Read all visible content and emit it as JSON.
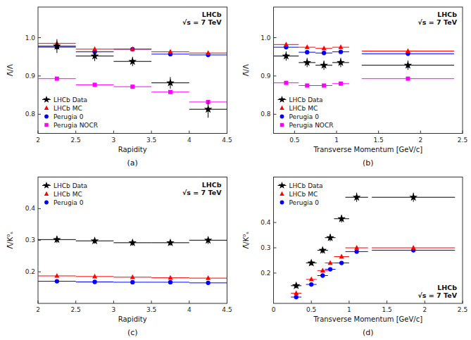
{
  "chart_data": [
    {
      "type": "scatter",
      "title": "(a)",
      "xlabel": "Rapidity",
      "ylabel": "Λ̄/Λ",
      "xlim": [
        2.0,
        4.5
      ],
      "xticks": [
        2,
        2.5,
        3,
        3.5,
        4,
        4.5
      ],
      "ylim": [
        0.75,
        1.08
      ],
      "yticks": [
        0.8,
        0.9,
        {
          "value": 1.0,
          "label": "1.0"
        }
      ],
      "grid": false,
      "legend": "lower left",
      "annotation": "LHCb\n√s = 7 TeV",
      "series": [
        {
          "name": "LHCb Data",
          "color": "black",
          "marker": "star",
          "x": [
            2.25,
            2.75,
            3.25,
            3.75,
            4.25
          ],
          "values": [
            0.978,
            0.952,
            0.938,
            0.882,
            0.813
          ],
          "xerr": [
            0.25,
            0.25,
            0.25,
            0.25,
            0.25
          ],
          "yerr": [
            0.018,
            0.013,
            0.012,
            0.015,
            0.022
          ]
        },
        {
          "name": "LHCb MC",
          "color": "red",
          "marker": "triangle",
          "x": [
            2.25,
            2.75,
            3.25,
            3.75,
            4.25
          ],
          "values": [
            0.985,
            0.97,
            0.97,
            0.963,
            0.96
          ],
          "xerr": [
            0.25,
            0.25,
            0.25,
            0.25,
            0.25
          ]
        },
        {
          "name": "Perugia 0",
          "color": "blue",
          "marker": "circle",
          "x": [
            2.25,
            2.75,
            3.25,
            3.75,
            4.25
          ],
          "values": [
            0.975,
            0.963,
            0.97,
            0.957,
            0.955
          ],
          "xerr": [
            0.25,
            0.25,
            0.25,
            0.25,
            0.25
          ]
        },
        {
          "name": "Perugia NOCR",
          "color": "magenta",
          "marker": "square",
          "x": [
            2.25,
            2.75,
            3.25,
            3.75,
            4.25
          ],
          "values": [
            0.893,
            0.877,
            0.872,
            0.858,
            0.832
          ],
          "xerr": [
            0.25,
            0.25,
            0.25,
            0.25,
            0.25
          ]
        }
      ]
    },
    {
      "type": "scatter",
      "title": "(b)",
      "xlabel": "Transverse Momentum [GeV/c]",
      "ylabel": "Λ̄/Λ",
      "xlim": [
        0.25,
        2.5
      ],
      "xticks": [
        0.5,
        1,
        1.5,
        2,
        2.5
      ],
      "ylim": [
        0.75,
        1.08
      ],
      "yticks": [
        0.8,
        0.9,
        {
          "value": 1.0,
          "label": "1.0"
        }
      ],
      "grid": false,
      "legend": "lower left",
      "annotation": "LHCb\n√s = 7 TeV",
      "series": [
        {
          "name": "LHCb Data",
          "color": "black",
          "marker": "star",
          "x": [
            0.4,
            0.65,
            0.85,
            1.05,
            1.85
          ],
          "values": [
            0.952,
            0.935,
            0.928,
            0.935,
            0.928
          ],
          "xerr": [
            0.15,
            0.1,
            0.1,
            0.1,
            0.55
          ],
          "yerr": [
            0.012,
            0.012,
            0.012,
            0.012,
            0.012
          ]
        },
        {
          "name": "LHCb MC",
          "color": "red",
          "marker": "triangle",
          "x": [
            0.4,
            0.65,
            0.85,
            1.05,
            1.85
          ],
          "values": [
            0.982,
            0.975,
            0.972,
            0.975,
            0.965
          ],
          "xerr": [
            0.15,
            0.1,
            0.1,
            0.1,
            0.55
          ]
        },
        {
          "name": "Perugia 0",
          "color": "blue",
          "marker": "circle",
          "x": [
            0.4,
            0.65,
            0.85,
            1.05,
            1.85
          ],
          "values": [
            0.975,
            0.962,
            0.96,
            0.963,
            0.958
          ],
          "xerr": [
            0.15,
            0.1,
            0.1,
            0.1,
            0.55
          ]
        },
        {
          "name": "Perugia NOCR",
          "color": "magenta",
          "marker": "square",
          "x": [
            0.4,
            0.65,
            0.85,
            1.05,
            1.85
          ],
          "values": [
            0.882,
            0.875,
            0.875,
            0.88,
            0.893
          ],
          "xerr": [
            0.15,
            0.1,
            0.1,
            0.1,
            0.55
          ]
        }
      ]
    },
    {
      "type": "scatter",
      "title": "(c)",
      "xlabel": "Rapidity",
      "ylabel": "Λ̄/K⁰ₛ",
      "xlim": [
        2.0,
        4.5
      ],
      "xticks": [
        2,
        2.5,
        3,
        3.5,
        4,
        4.5
      ],
      "ylim": [
        0.1,
        0.5
      ],
      "yticks": [
        0.2,
        0.3,
        0.4
      ],
      "grid": false,
      "legend": "upper left",
      "annotation": "LHCb\n√s = 7 TeV",
      "series": [
        {
          "name": "LHCb Data",
          "color": "black",
          "marker": "star",
          "x": [
            2.25,
            2.75,
            3.25,
            3.75,
            4.25
          ],
          "values": [
            0.302,
            0.298,
            0.292,
            0.292,
            0.3
          ],
          "xerr": [
            0.25,
            0.25,
            0.25,
            0.25,
            0.25
          ],
          "yerr": [
            0.011,
            0.009,
            0.009,
            0.009,
            0.012
          ]
        },
        {
          "name": "LHCb MC",
          "color": "red",
          "marker": "triangle",
          "x": [
            2.25,
            2.75,
            3.25,
            3.75,
            4.25
          ],
          "values": [
            0.187,
            0.185,
            0.183,
            0.181,
            0.18
          ],
          "xerr": [
            0.25,
            0.25,
            0.25,
            0.25,
            0.25
          ]
        },
        {
          "name": "Perugia 0",
          "color": "blue",
          "marker": "circle",
          "x": [
            2.25,
            2.75,
            3.25,
            3.75,
            4.25
          ],
          "values": [
            0.17,
            0.168,
            0.167,
            0.167,
            0.165
          ],
          "xerr": [
            0.25,
            0.25,
            0.25,
            0.25,
            0.25
          ]
        }
      ]
    },
    {
      "type": "scatter",
      "title": "(d)",
      "xlabel": "Transverse Momentum [GeV/c]",
      "ylabel": "Λ̄/K⁰ₛ",
      "xlim": [
        0,
        2.5
      ],
      "xticks": [
        0,
        0.5,
        1,
        1.5,
        2,
        2.5
      ],
      "ylim": [
        0.08,
        0.58
      ],
      "yticks": [
        0.2,
        0.3,
        0.4
      ],
      "grid": false,
      "legend": "upper left",
      "annotation": "LHCb\n√s = 7 TeV",
      "series": [
        {
          "name": "LHCb Data",
          "color": "black",
          "marker": "star",
          "x": [
            0.3,
            0.5,
            0.65,
            0.75,
            0.9,
            1.1,
            1.85
          ],
          "values": [
            0.15,
            0.24,
            0.29,
            0.34,
            0.415,
            0.5,
            0.5
          ],
          "xerr": [
            0.07,
            0.07,
            0.07,
            0.07,
            0.1,
            0.15,
            0.55
          ],
          "yerr": [
            0.01,
            0.01,
            0.012,
            0.014,
            0.015,
            0.018,
            0.018
          ]
        },
        {
          "name": "LHCb MC",
          "color": "red",
          "marker": "triangle",
          "x": [
            0.3,
            0.5,
            0.65,
            0.75,
            0.9,
            1.1,
            1.85
          ],
          "values": [
            0.12,
            0.175,
            0.21,
            0.24,
            0.265,
            0.3,
            0.3
          ],
          "xerr": [
            0.07,
            0.07,
            0.07,
            0.07,
            0.1,
            0.15,
            0.55
          ]
        },
        {
          "name": "Perugia 0",
          "color": "blue",
          "marker": "circle",
          "x": [
            0.3,
            0.5,
            0.65,
            0.75,
            0.9,
            1.1,
            1.85
          ],
          "values": [
            0.105,
            0.155,
            0.19,
            0.215,
            0.24,
            0.285,
            0.29
          ],
          "xerr": [
            0.07,
            0.07,
            0.07,
            0.07,
            0.1,
            0.15,
            0.55
          ]
        }
      ]
    }
  ]
}
